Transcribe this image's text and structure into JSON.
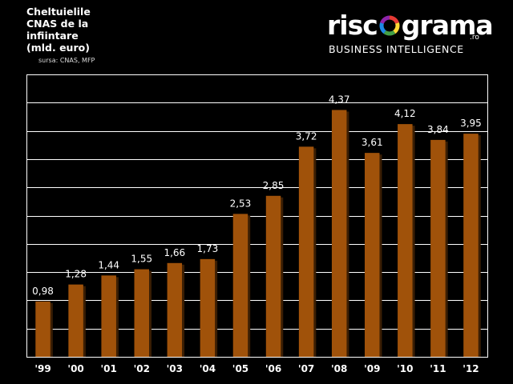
{
  "chart_title_lines": [
    "Cheltuielile",
    "CNAS de la",
    "infiintare",
    "(mld. euro)"
  ],
  "source": "sursa: CNAS, MFP",
  "logo": {
    "word_before": "risc",
    "word_after": "grama",
    "tld": ".ro",
    "subtitle": "BUSINESS INTELLIGENCE",
    "ring_colors": [
      "#e53935",
      "#fdd835",
      "#43a047",
      "#1e88e5",
      "#8e24aa"
    ]
  },
  "colors": {
    "background": "#000000",
    "bar": "#a0520a",
    "bar_shadow": "#3a1e04",
    "grid": "#ffffff",
    "text": "#ffffff"
  },
  "chart_data": {
    "type": "bar",
    "categories": [
      "'99",
      "'00",
      "'01",
      "'02",
      "'03",
      "'04",
      "'05",
      "'06",
      "'07",
      "'08",
      "'09",
      "'10",
      "'11",
      "'12"
    ],
    "values": [
      0.98,
      1.28,
      1.44,
      1.55,
      1.66,
      1.73,
      2.53,
      2.85,
      3.72,
      4.37,
      3.61,
      4.12,
      3.84,
      3.95
    ],
    "value_labels": [
      "0,98",
      "1,28",
      "1,44",
      "1,55",
      "1,66",
      "1,73",
      "2,53",
      "2,85",
      "3,72",
      "4,37",
      "3,61",
      "4,12",
      "3,84",
      "3,95"
    ],
    "title": "Cheltuielile CNAS de la infiintare (mld. euro)",
    "ylim": [
      0,
      5
    ],
    "gridlines": true,
    "grid_step": 0.5,
    "legend": "none"
  }
}
